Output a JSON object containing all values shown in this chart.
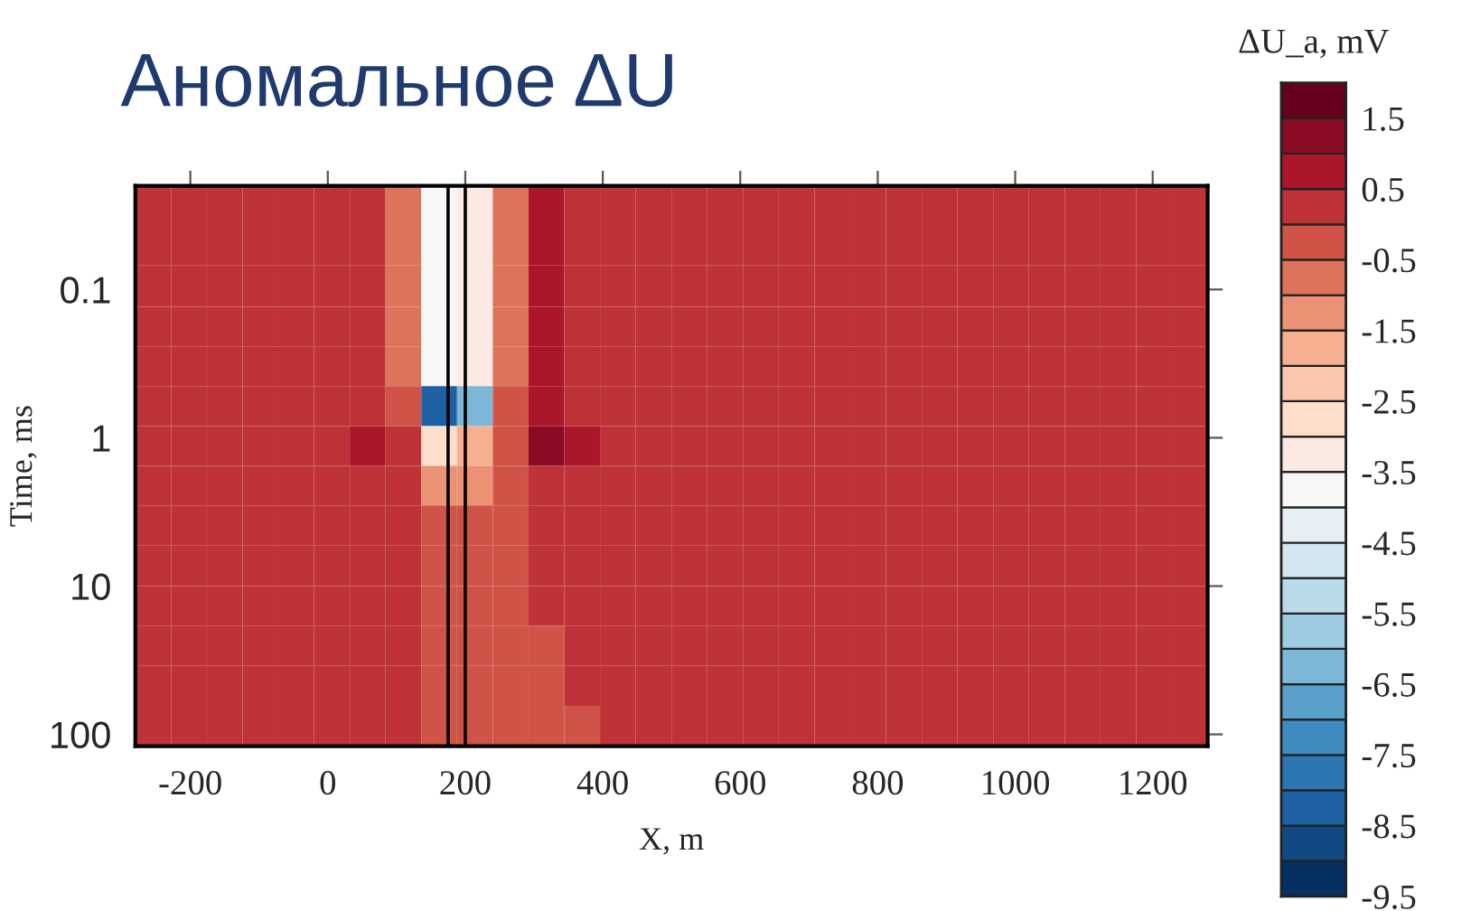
{
  "chart_data": {
    "type": "heatmap",
    "title": "Аномальное ΔU",
    "xlabel": "X, m",
    "ylabel": "Time, ms",
    "clabel": "ΔU_a, mV",
    "log": "y",
    "x": [
      -254,
      -202,
      -150,
      -98,
      -46,
      6,
      58,
      110,
      162,
      214,
      266,
      318,
      370,
      422,
      474,
      526,
      578,
      630,
      682,
      734,
      786,
      838,
      890,
      942,
      994,
      1046,
      1098,
      1150,
      1202,
      1254
    ],
    "y": [
      0.027,
      0.05,
      0.095,
      0.18,
      0.33,
      0.61,
      1.14,
      2.1,
      3.9,
      7.3,
      13.7,
      25,
      47,
      88
    ],
    "xlim": [
      -280,
      1280
    ],
    "xticks": [
      -200,
      0,
      200,
      400,
      600,
      800,
      1000,
      1200
    ],
    "ylim": [
      120,
      0.02
    ],
    "yticks": [
      0.1,
      1,
      10,
      100
    ],
    "clim": [
      -9.5,
      2
    ],
    "cticks": [
      1.5,
      0.5,
      -0.5,
      -1.5,
      -2.5,
      -3.5,
      -4.5,
      -5.5,
      -6.5,
      -7.5,
      -8.5,
      -9.5
    ],
    "ref_lines": [
      {
        "axis": "x",
        "value": 175,
        "color": "#000000"
      },
      {
        "axis": "x",
        "value": 200,
        "color": "#000000"
      }
    ],
    "cells": [
      [
        0.2,
        0.2,
        0.2,
        0.2,
        0.2,
        0.2,
        0.2,
        -0.7,
        -3.7,
        -3.2,
        -1.0,
        0.7,
        0.2,
        0.2,
        0.2,
        0.2,
        0.2,
        0.2,
        0.2,
        0.2,
        0.2,
        0.2,
        0.2,
        0.2,
        0.2,
        0.2,
        0.2,
        0.2,
        0.2,
        0.2
      ],
      [
        0.2,
        0.2,
        0.2,
        0.2,
        0.2,
        0.2,
        0.2,
        -0.7,
        -3.7,
        -3.2,
        -1.0,
        0.7,
        0.2,
        0.2,
        0.2,
        0.2,
        0.2,
        0.2,
        0.2,
        0.2,
        0.2,
        0.2,
        0.2,
        0.2,
        0.2,
        0.2,
        0.2,
        0.2,
        0.2,
        0.2
      ],
      [
        0.2,
        0.2,
        0.2,
        0.2,
        0.2,
        0.2,
        0.2,
        -0.7,
        -3.7,
        -3.2,
        -1.0,
        0.7,
        0.2,
        0.2,
        0.2,
        0.2,
        0.2,
        0.2,
        0.2,
        0.2,
        0.2,
        0.2,
        0.2,
        0.2,
        0.2,
        0.2,
        0.2,
        0.2,
        0.2,
        0.2
      ],
      [
        0.2,
        0.2,
        0.2,
        0.2,
        0.2,
        0.2,
        0.2,
        -0.7,
        -3.7,
        -3.2,
        -1.0,
        0.7,
        0.2,
        0.2,
        0.2,
        0.2,
        0.2,
        0.2,
        0.2,
        0.2,
        0.2,
        0.2,
        0.2,
        0.2,
        0.2,
        0.2,
        0.2,
        0.2,
        0.2,
        0.2
      ],
      [
        0.2,
        0.2,
        0.2,
        0.2,
        0.2,
        0.2,
        0.2,
        -0.7,
        -3.7,
        -3.2,
        -1.0,
        0.7,
        0.2,
        0.2,
        0.2,
        0.2,
        0.2,
        0.2,
        0.2,
        0.2,
        0.2,
        0.2,
        0.2,
        0.2,
        0.2,
        0.2,
        0.2,
        0.2,
        0.2,
        0.2
      ],
      [
        0.2,
        0.2,
        0.2,
        0.2,
        0.2,
        0.2,
        0.2,
        -0.3,
        -8.5,
        -6.2,
        -0.5,
        0.7,
        0.2,
        0.2,
        0.2,
        0.2,
        0.2,
        0.2,
        0.2,
        0.2,
        0.2,
        0.2,
        0.2,
        0.2,
        0.2,
        0.2,
        0.2,
        0.2,
        0.2,
        0.2
      ],
      [
        0.2,
        0.2,
        0.2,
        0.2,
        0.2,
        0.2,
        0.7,
        0.2,
        -3.0,
        -2.0,
        -0.3,
        1.2,
        0.7,
        0.2,
        0.2,
        0.2,
        0.2,
        0.2,
        0.2,
        0.2,
        0.2,
        0.2,
        0.2,
        0.2,
        0.2,
        0.2,
        0.2,
        0.2,
        0.2,
        0.2
      ],
      [
        0.2,
        0.2,
        0.2,
        0.2,
        0.2,
        0.2,
        0.2,
        0.2,
        -1.5,
        -1.2,
        -0.3,
        0.2,
        0.2,
        0.2,
        0.2,
        0.2,
        0.2,
        0.2,
        0.2,
        0.2,
        0.2,
        0.2,
        0.2,
        0.2,
        0.2,
        0.2,
        0.2,
        0.2,
        0.2,
        0.2
      ],
      [
        0.2,
        0.2,
        0.2,
        0.2,
        0.2,
        0.2,
        0.2,
        0.2,
        -0.3,
        -0.3,
        -0.3,
        0.2,
        0.2,
        0.2,
        0.2,
        0.2,
        0.2,
        0.2,
        0.2,
        0.2,
        0.2,
        0.2,
        0.2,
        0.2,
        0.2,
        0.2,
        0.2,
        0.2,
        0.2,
        0.2
      ],
      [
        0.2,
        0.2,
        0.2,
        0.2,
        0.2,
        0.2,
        0.2,
        0.2,
        -0.3,
        -0.3,
        -0.3,
        0.2,
        0.2,
        0.2,
        0.2,
        0.2,
        0.2,
        0.2,
        0.2,
        0.2,
        0.2,
        0.2,
        0.2,
        0.2,
        0.2,
        0.2,
        0.2,
        0.2,
        0.2,
        0.2
      ],
      [
        0.2,
        0.2,
        0.2,
        0.2,
        0.2,
        0.2,
        0.2,
        0.2,
        -0.3,
        -0.3,
        -0.3,
        0.2,
        0.2,
        0.2,
        0.2,
        0.2,
        0.2,
        0.2,
        0.2,
        0.2,
        0.2,
        0.2,
        0.2,
        0.2,
        0.2,
        0.2,
        0.2,
        0.2,
        0.2,
        0.2
      ],
      [
        0.2,
        0.2,
        0.2,
        0.2,
        0.2,
        0.2,
        0.2,
        0.2,
        -0.3,
        -0.3,
        -0.3,
        -0.3,
        0.2,
        0.2,
        0.2,
        0.2,
        0.2,
        0.2,
        0.2,
        0.2,
        0.2,
        0.2,
        0.2,
        0.2,
        0.2,
        0.2,
        0.2,
        0.2,
        0.2,
        0.2
      ],
      [
        0.2,
        0.2,
        0.2,
        0.2,
        0.2,
        0.2,
        0.2,
        0.2,
        -0.3,
        -0.3,
        -0.3,
        -0.3,
        0.2,
        0.2,
        0.2,
        0.2,
        0.2,
        0.2,
        0.2,
        0.2,
        0.2,
        0.2,
        0.2,
        0.2,
        0.2,
        0.2,
        0.2,
        0.2,
        0.2,
        0.2
      ],
      [
        0.2,
        0.2,
        0.2,
        0.2,
        0.2,
        0.2,
        0.2,
        0.2,
        -0.3,
        -0.3,
        -0.3,
        -0.3,
        -0.3,
        0.2,
        0.2,
        0.2,
        0.2,
        0.2,
        0.2,
        0.2,
        0.2,
        0.2,
        0.2,
        0.2,
        0.2,
        0.2,
        0.2,
        0.2,
        0.2,
        0.2
      ]
    ]
  }
}
